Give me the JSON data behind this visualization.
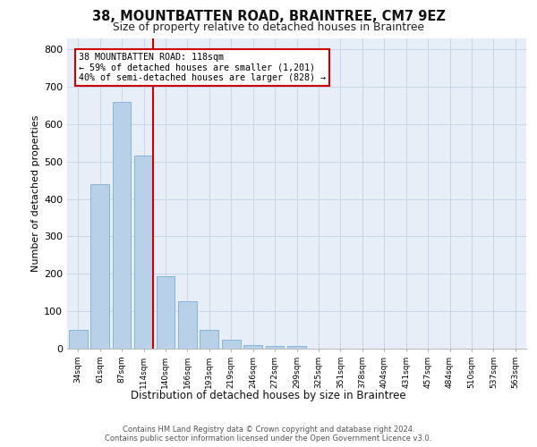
{
  "title": "38, MOUNTBATTEN ROAD, BRAINTREE, CM7 9EZ",
  "subtitle": "Size of property relative to detached houses in Braintree",
  "xlabel": "Distribution of detached houses by size in Braintree",
  "ylabel": "Number of detached properties",
  "bar_color": "#b8d0e8",
  "bar_edge_color": "#7aafd4",
  "grid_color": "#c8d4e8",
  "background_color": "#e8eef8",
  "bin_labels": [
    "34sqm",
    "61sqm",
    "87sqm",
    "114sqm",
    "140sqm",
    "166sqm",
    "193sqm",
    "219sqm",
    "246sqm",
    "272sqm",
    "299sqm",
    "325sqm",
    "351sqm",
    "378sqm",
    "404sqm",
    "431sqm",
    "457sqm",
    "484sqm",
    "510sqm",
    "537sqm",
    "563sqm"
  ],
  "bar_values": [
    50,
    440,
    660,
    515,
    193,
    127,
    50,
    25,
    10,
    7,
    7,
    0,
    0,
    0,
    0,
    0,
    0,
    0,
    0,
    0,
    0
  ],
  "red_line_bin_index": 3,
  "annotation_line1": "38 MOUNTBATTEN ROAD: 118sqm",
  "annotation_line2": "← 59% of detached houses are smaller (1,201)",
  "annotation_line3": "40% of semi-detached houses are larger (828) →",
  "red_line_color": "#cc0000",
  "ylim_max": 830,
  "yticks": [
    0,
    100,
    200,
    300,
    400,
    500,
    600,
    700,
    800
  ],
  "footer_line1": "Contains HM Land Registry data © Crown copyright and database right 2024.",
  "footer_line2": "Contains public sector information licensed under the Open Government Licence v3.0."
}
